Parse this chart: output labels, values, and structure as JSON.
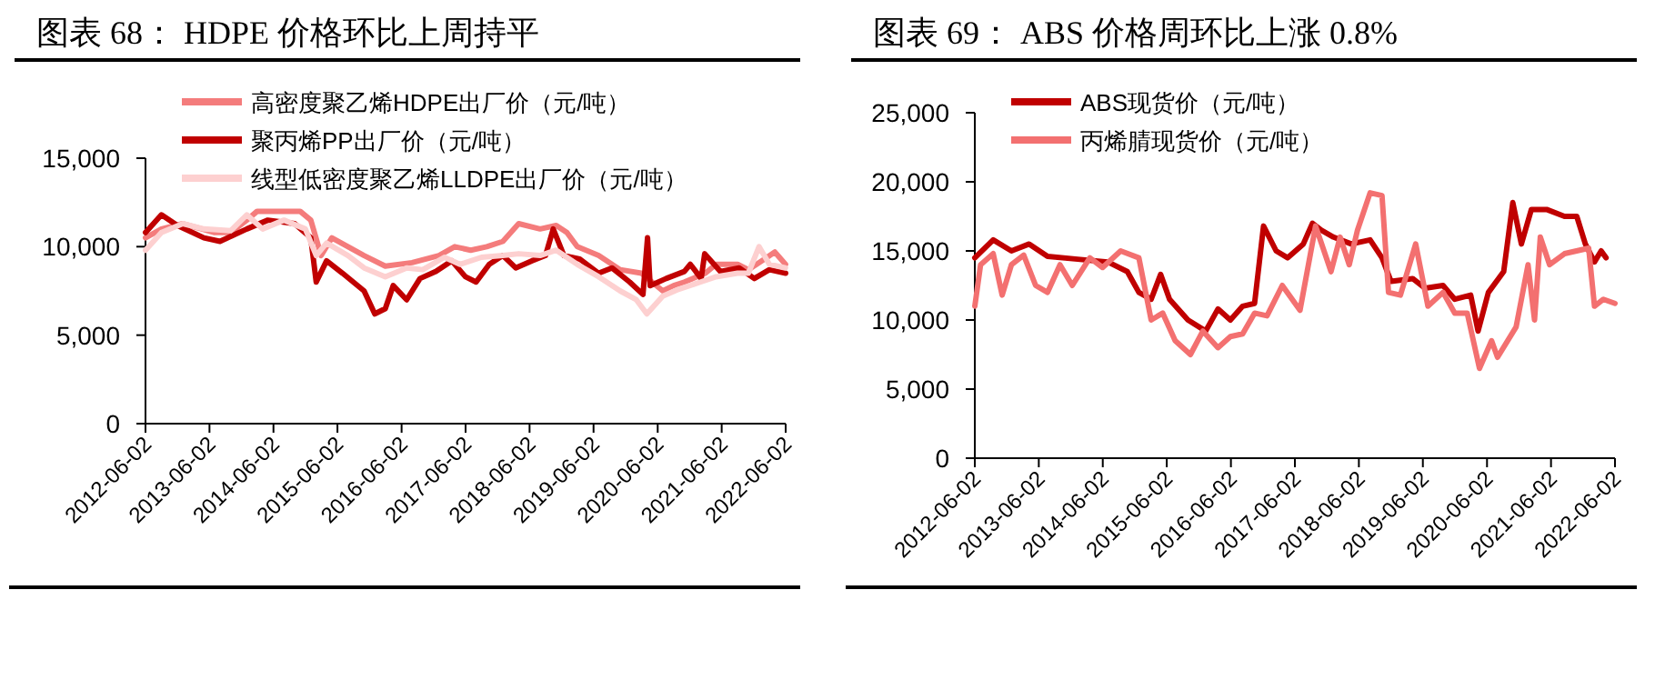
{
  "chart_data": [
    {
      "type": "line",
      "title": "图表 68：  HDPE 价格环比上周持平",
      "xlim": [
        "2012-06-02",
        "2022-06-02"
      ],
      "xticks": [
        "2012-06-02",
        "2013-06-02",
        "2014-06-02",
        "2015-06-02",
        "2016-06-02",
        "2017-06-02",
        "2018-06-02",
        "2019-06-02",
        "2020-06-02",
        "2021-06-02",
        "2022-06-02"
      ],
      "ylim": [
        0,
        15000
      ],
      "yticks": [
        0,
        {
          "value": 5000,
          "label": "5,000"
        },
        {
          "value": 10000,
          "label": "10,000"
        },
        {
          "value": 15000,
          "label": "15,000"
        }
      ],
      "legend": "top left",
      "grid": false,
      "series": [
        {
          "name": "高密度聚乙烯HDPE出厂价（元/吨）",
          "color": "#f47c7c",
          "x": [
            "2012-06-02",
            "2012-09",
            "2013-01",
            "2013-07",
            "2013-10",
            "2014-01",
            "2014-03",
            "2014-07",
            "2014-11",
            "2015-01",
            "2015-03",
            "2015-05",
            "2015-08",
            "2015-11",
            "2016-03",
            "2016-08",
            "2017-01",
            "2017-04",
            "2017-07",
            "2017-10",
            "2018-01",
            "2018-04",
            "2018-08",
            "2018-11",
            "2019-01",
            "2019-03",
            "2019-07",
            "2019-11",
            "2020-03",
            "2020-07",
            "2020-09",
            "2020-11",
            "2021-03",
            "2021-05",
            "2021-09",
            "2021-11",
            "2022-02",
            "2022-04",
            "2022-06"
          ],
          "values": [
            10500,
            11000,
            11300,
            10800,
            10800,
            11500,
            12000,
            12000,
            12000,
            11500,
            9500,
            10500,
            10000,
            9500,
            8900,
            9100,
            9500,
            10000,
            9800,
            10000,
            10300,
            11300,
            11000,
            11200,
            10800,
            10000,
            9500,
            8700,
            8500,
            7500,
            7800,
            8000,
            8500,
            9000,
            9000,
            8700,
            9300,
            9700,
            9000
          ]
        },
        {
          "name": "聚丙烯PP出厂价（元/吨）",
          "color": "#c00000",
          "x": [
            "2012-06-02",
            "2012-09-01",
            "2012-12-01",
            "2013-05-01",
            "2013-08-01",
            "2014-01-01",
            "2014-05-01",
            "2014-10-01",
            "2015-01-01",
            "2015-02-01",
            "2015-04-01",
            "2015-07-01",
            "2015-11-01",
            "2016-01-01",
            "2016-03-01",
            "2016-04-15",
            "2016-07-01",
            "2016-09-15",
            "2016-12-15",
            "2017-03-15",
            "2017-06-01",
            "2017-08-01",
            "2017-10-15",
            "2018-01-01",
            "2018-03-15",
            "2018-06-15",
            "2018-09-01",
            "2018-10-15",
            "2018-12-15",
            "2019-03-15",
            "2019-07-01",
            "2019-09-15",
            "2019-12-25",
            "2020-03-10",
            "2020-04-05",
            "2020-04-20",
            "2020-07-20",
            "2020-11-01",
            "2020-12-05",
            "2021-02-05",
            "2021-02-25",
            "2021-05-25",
            "2021-09-10",
            "2021-12-05",
            "2022-03-01",
            "2022-06-02"
          ],
          "values": [
            10800,
            11800,
            11200,
            10500,
            10300,
            11000,
            11500,
            11300,
            10500,
            8000,
            9200,
            8500,
            7500,
            6200,
            6500,
            7800,
            7000,
            8200,
            8600,
            9200,
            8300,
            8000,
            9000,
            9500,
            8800,
            9200,
            9500,
            11000,
            9500,
            9300,
            8500,
            8800,
            8000,
            7300,
            10500,
            7800,
            8200,
            8600,
            9000,
            8200,
            9600,
            8600,
            8800,
            8200,
            8700,
            8500
          ]
        },
        {
          "name": "线型低密度聚乙烯LLDPE出厂价（元/吨）",
          "color": "#fdd0d0",
          "x": [
            "2012-06-02",
            "2012-09",
            "2013-01",
            "2013-05",
            "2013-10",
            "2014-01",
            "2014-04",
            "2014-08",
            "2014-12",
            "2015-02",
            "2015-04",
            "2015-08",
            "2015-11",
            "2016-03",
            "2016-07",
            "2016-10",
            "2017-02",
            "2017-05",
            "2017-09",
            "2018-01",
            "2018-04",
            "2018-08",
            "2018-11",
            "2019-03",
            "2019-07",
            "2019-11",
            "2020-02",
            "2020-04",
            "2020-07",
            "2020-10",
            "2021-02",
            "2021-05",
            "2021-09",
            "2021-11",
            "2022-01",
            "2022-03",
            "2022-06"
          ],
          "values": [
            9800,
            10800,
            11300,
            11000,
            10900,
            11800,
            11000,
            11500,
            11000,
            9500,
            10200,
            9500,
            8800,
            8300,
            8800,
            8700,
            9400,
            9000,
            9400,
            9500,
            9600,
            9500,
            9800,
            9000,
            8300,
            7500,
            7000,
            6200,
            7200,
            7600,
            8000,
            8300,
            8500,
            8500,
            10000,
            9000,
            8800
          ]
        }
      ]
    },
    {
      "type": "line",
      "title": "图表 69：  ABS 价格周环比上涨 0.8%",
      "xlim": [
        "2012-06-02",
        "2022-06-02"
      ],
      "xticks": [
        "2012-06-02",
        "2013-06-02",
        "2014-06-02",
        "2015-06-02",
        "2016-06-02",
        "2017-06-02",
        "2018-06-02",
        "2019-06-02",
        "2020-06-02",
        "2021-06-02",
        "2022-06-02"
      ],
      "ylim": [
        0,
        25000
      ],
      "yticks": [
        0,
        {
          "value": 5000,
          "label": "5,000"
        },
        {
          "value": 10000,
          "label": "10,000"
        },
        {
          "value": 15000,
          "label": "15,000"
        },
        {
          "value": 20000,
          "label": "20,000"
        },
        {
          "value": 25000,
          "label": "25,000"
        }
      ],
      "legend": "top left",
      "grid": false,
      "series": [
        {
          "name": "ABS现货价（元/吨）",
          "color": "#c00000",
          "x": [
            "2012-06-02",
            "2012-09-15",
            "2012-12-28",
            "2013-04-08",
            "2013-07-22",
            "2014-01-10",
            "2014-07-01",
            "2014-10-20",
            "2014-12-25",
            "2015-03-05",
            "2015-04-28",
            "2015-06-18",
            "2015-10-01",
            "2016-01-10",
            "2016-03-20",
            "2016-05-30",
            "2016-08-08",
            "2016-10-15",
            "2016-12-05",
            "2017-02-15",
            "2017-04-22",
            "2017-07-20",
            "2017-09-10",
            "2017-10-30",
            "2018-01-08",
            "2018-04-20",
            "2018-08-05",
            "2018-10-12",
            "2018-12-02",
            "2019-04-05",
            "2019-06-15",
            "2019-09-25",
            "2019-12-01",
            "2020-03-01",
            "2020-04-12",
            "2020-06-10",
            "2020-09-05",
            "2020-10-27",
            "2020-12-15",
            "2021-02-10",
            "2021-05-08",
            "2021-08-18",
            "2021-10-27",
            "2021-12-15",
            "2022-02-05",
            "2022-03-15",
            "2022-04-12"
          ],
          "values": [
            14500,
            15800,
            15000,
            15500,
            14600,
            14400,
            14200,
            13500,
            12000,
            11500,
            13300,
            11500,
            10000,
            9200,
            10800,
            10000,
            11000,
            11200,
            16800,
            15000,
            14500,
            15500,
            17000,
            16500,
            16000,
            15500,
            15800,
            14500,
            12800,
            13000,
            12300,
            12500,
            11500,
            11800,
            9200,
            12000,
            13500,
            18500,
            15500,
            18000,
            18000,
            17500,
            17500,
            15500,
            14200,
            15000,
            14500
          ]
        },
        {
          "name": "丙烯腈现货价（元/吨）",
          "color": "#f37070",
          "x": [
            "2012-06-02",
            "2012-07-05",
            "2012-09-15",
            "2012-11-05",
            "2012-12-28",
            "2013-03-08",
            "2013-05-15",
            "2013-07-22",
            "2013-10-01",
            "2013-12-10",
            "2014-03-20",
            "2014-06-01",
            "2014-09-12",
            "2014-12-25",
            "2015-03-05",
            "2015-05-10",
            "2015-07-20",
            "2015-10-15",
            "2015-12-25",
            "2016-03-20",
            "2016-05-30",
            "2016-08-08",
            "2016-10-15",
            "2016-12-25",
            "2017-03-22",
            "2017-07-01",
            "2017-09-28",
            "2017-12-25",
            "2018-02-15",
            "2018-04-08",
            "2018-05-25",
            "2018-08-05",
            "2018-10-12",
            "2018-11-18",
            "2019-01-25",
            "2019-04-22",
            "2019-07-01",
            "2019-09-25",
            "2019-12-01",
            "2020-02-10",
            "2020-04-20",
            "2020-06-28",
            "2020-08-01",
            "2020-11-15",
            "2021-01-22",
            "2021-02-28",
            "2021-04-02",
            "2021-05-25",
            "2021-08-18",
            "2022-01-03",
            "2022-02-05",
            "2022-03-28",
            "2022-06-02"
          ],
          "values": [
            11000,
            14000,
            14800,
            11800,
            14000,
            14700,
            12500,
            12000,
            14000,
            12500,
            14500,
            13800,
            15000,
            14500,
            10000,
            10500,
            8500,
            7500,
            9200,
            8000,
            8800,
            9000,
            10500,
            10300,
            12500,
            10700,
            16800,
            13500,
            16000,
            14000,
            16500,
            19200,
            19000,
            12000,
            11800,
            15500,
            11000,
            12000,
            10500,
            10500,
            6500,
            8500,
            7300,
            9500,
            14000,
            10000,
            16000,
            14000,
            14800,
            15200,
            11000,
            11500,
            11200
          ]
        }
      ]
    }
  ]
}
